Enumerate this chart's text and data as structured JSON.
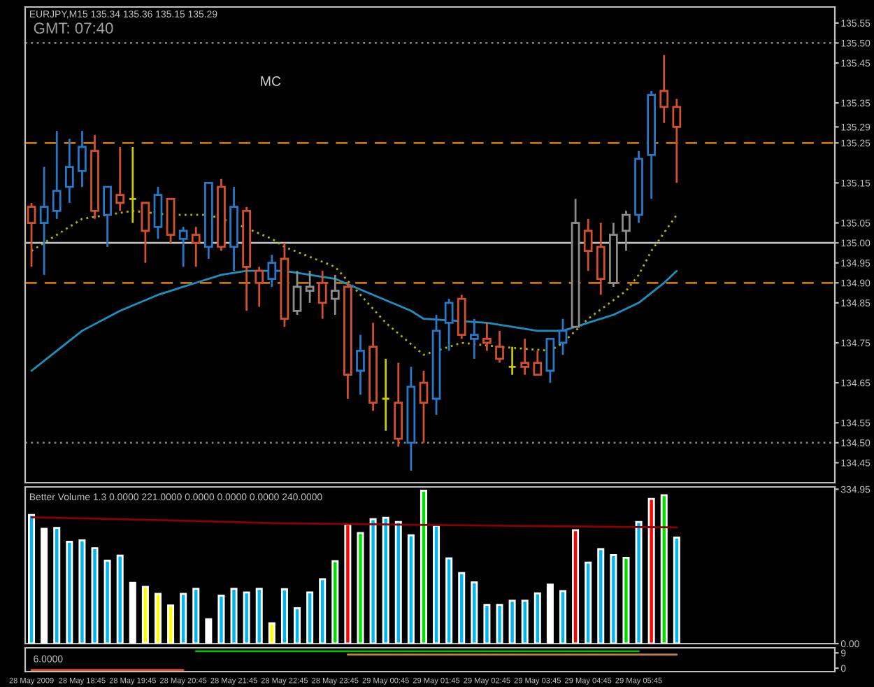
{
  "chart_data": [
    {
      "type": "candlestick",
      "title": "EURJPY,M15 135.34 135.36 135.15 135.29",
      "annotations": [
        "GMT: 07:40",
        "MC"
      ],
      "ohlc": [
        [
          135.09,
          135.1,
          134.94,
          135.05
        ],
        [
          135.05,
          135.19,
          134.92,
          135.09
        ],
        [
          135.08,
          135.28,
          135.06,
          135.13
        ],
        [
          135.14,
          135.26,
          135.1,
          135.19
        ],
        [
          135.18,
          135.28,
          135.14,
          135.24
        ],
        [
          135.23,
          135.27,
          135.06,
          135.08
        ],
        [
          135.07,
          135.14,
          134.99,
          135.14
        ],
        [
          135.12,
          135.24,
          135.08,
          135.1
        ],
        [
          135.11,
          135.24,
          135.05,
          135.11
        ],
        [
          135.1,
          135.1,
          134.95,
          135.03
        ],
        [
          135.04,
          135.14,
          135.01,
          135.12
        ],
        [
          135.11,
          135.11,
          135.0,
          135.02
        ],
        [
          135.01,
          135.04,
          134.94,
          135.03
        ],
        [
          135.02,
          135.04,
          134.94,
          135.0
        ],
        [
          134.99,
          135.15,
          134.96,
          135.15
        ],
        [
          135.14,
          135.16,
          134.98,
          134.99
        ],
        [
          134.99,
          135.14,
          134.93,
          135.09
        ],
        [
          135.08,
          135.09,
          134.83,
          134.94
        ],
        [
          134.93,
          134.94,
          134.84,
          134.9
        ],
        [
          134.91,
          134.97,
          134.89,
          134.95
        ],
        [
          134.96,
          135.0,
          134.79,
          134.81
        ],
        [
          134.83,
          134.93,
          134.82,
          134.89
        ],
        [
          134.88,
          134.93,
          134.85,
          134.89
        ],
        [
          134.9,
          134.93,
          134.81,
          134.85
        ],
        [
          134.86,
          134.92,
          134.82,
          134.88
        ],
        [
          134.89,
          134.9,
          134.61,
          134.67
        ],
        [
          134.68,
          134.77,
          134.62,
          134.73
        ],
        [
          134.74,
          134.8,
          134.58,
          134.6
        ],
        [
          134.61,
          134.71,
          134.53,
          134.61
        ],
        [
          134.6,
          134.7,
          134.49,
          134.51
        ],
        [
          134.5,
          134.69,
          134.43,
          134.64
        ],
        [
          134.65,
          134.68,
          134.5,
          134.6
        ],
        [
          134.61,
          134.82,
          134.57,
          134.78
        ],
        [
          134.8,
          134.86,
          134.73,
          134.85
        ],
        [
          134.86,
          134.87,
          134.76,
          134.77
        ],
        [
          134.76,
          134.81,
          134.71,
          134.77
        ],
        [
          134.76,
          134.8,
          134.73,
          134.75
        ],
        [
          134.74,
          134.78,
          134.7,
          134.71
        ],
        [
          134.69,
          134.74,
          134.67,
          134.69
        ],
        [
          134.7,
          134.76,
          134.67,
          134.69
        ],
        [
          134.7,
          134.73,
          134.67,
          134.67
        ],
        [
          134.68,
          134.76,
          134.65,
          134.76
        ],
        [
          134.75,
          134.81,
          134.72,
          134.78
        ],
        [
          134.79,
          135.11,
          134.79,
          135.05
        ],
        [
          135.03,
          135.06,
          134.93,
          134.98
        ],
        [
          134.99,
          135.05,
          134.87,
          134.91
        ],
        [
          134.9,
          135.05,
          134.89,
          135.02
        ],
        [
          135.03,
          135.08,
          134.98,
          135.07
        ],
        [
          135.07,
          135.23,
          135.05,
          135.21
        ],
        [
          135.22,
          135.38,
          135.11,
          135.37
        ],
        [
          135.38,
          135.47,
          135.3,
          135.34
        ],
        [
          135.34,
          135.36,
          135.15,
          135.29
        ],
        null,
        null,
        null,
        null,
        null,
        null,
        null,
        null,
        null,
        null,
        null,
        null
      ],
      "colors": [
        "#d2502d",
        "#2878c8",
        "#2878c8",
        "#2878c8",
        "#2878c8",
        "#d2502d",
        "#2878c8",
        "#d2502d",
        "#c8c800",
        "#d2502d",
        "#2878c8",
        "#d2502d",
        "#2878c8",
        "#d2502d",
        "#2878c8",
        "#d2502d",
        "#2878c8",
        "#d2502d",
        "#d2502d",
        "#2878c8",
        "#d2502d",
        "#8c8c8c",
        "#8c8c8c",
        "#d2502d",
        "#8c8c8c",
        "#d2502d",
        "#2878c8",
        "#d2502d",
        "#c8c800",
        "#d2502d",
        "#2878c8",
        "#d2502d",
        "#2878c8",
        "#2878c8",
        "#d2502d",
        "#2878c8",
        "#d2502d",
        "#d2502d",
        "#c8c800",
        "#d2502d",
        "#d2502d",
        "#2878c8",
        "#2878c8",
        "#8c8c8c",
        "#d2502d",
        "#d2502d",
        "#8c8c8c",
        "#8c8c8c",
        "#2878c8",
        "#2878c8",
        "#d2502d",
        "#d2502d",
        null,
        null,
        null,
        null,
        null,
        null,
        null,
        null,
        null,
        null,
        null,
        null
      ],
      "series": [
        {
          "type": "line",
          "color": "#b4b400",
          "line_style": "dotted",
          "values": [
            134.98,
            null,
            null,
            135.04,
            135.06,
            null,
            null,
            null,
            135.08,
            null,
            null,
            135.07,
            null,
            null,
            135.07,
            null,
            135.05,
            null,
            null,
            135.01,
            134.99,
            null,
            null,
            null,
            134.94,
            null,
            134.87,
            null,
            134.8,
            null,
            null,
            134.72,
            null,
            null,
            134.75,
            null,
            null,
            134.74,
            null,
            null,
            null,
            134.73,
            134.75,
            134.78,
            134.81,
            null,
            null,
            134.88,
            134.92,
            134.98,
            null,
            135.07,
            null,
            null,
            null,
            null,
            null,
            null,
            null,
            null,
            null,
            null,
            null,
            null
          ]
        },
        {
          "type": "line",
          "color": "#1e90c0",
          "line_style": "solid",
          "values": [
            134.68,
            null,
            null,
            null,
            134.78,
            null,
            null,
            134.83,
            null,
            null,
            134.87,
            null,
            null,
            134.9,
            null,
            134.92,
            null,
            134.93,
            null,
            null,
            134.93,
            null,
            null,
            null,
            134.91,
            null,
            null,
            134.87,
            null,
            null,
            134.83,
            134.81,
            null,
            null,
            null,
            null,
            134.8,
            null,
            null,
            null,
            134.78,
            null,
            134.78,
            null,
            134.8,
            null,
            134.82,
            null,
            134.85,
            null,
            134.9,
            134.93,
            null,
            null,
            null,
            null,
            null,
            null,
            null,
            null,
            null,
            null,
            null,
            null
          ]
        }
      ],
      "ref_lines": [
        {
          "axis": "y",
          "value": 135.5,
          "color": "#808080",
          "line_style": "dotted"
        },
        {
          "axis": "y",
          "value": 135.25,
          "color": "#c87800",
          "line_style": "dashed"
        },
        {
          "axis": "y",
          "value": 135.0,
          "color": "#c0c0c0",
          "line_style": "solid"
        },
        {
          "axis": "y",
          "value": 134.9,
          "color": "#c87800",
          "line_style": "dashed"
        },
        {
          "axis": "y",
          "value": 134.5,
          "color": "#808080",
          "line_style": "dotted"
        }
      ],
      "ylim": [
        134.4,
        135.59
      ],
      "yticks": [
        135.55,
        {
          "value": 135.5,
          "label": "135.50"
        },
        135.45,
        135.35,
        135.29,
        135.25,
        135.15,
        135.05,
        {
          "value": 135.0,
          "label": "135.00"
        },
        134.95,
        {
          "value": 134.9,
          "label": "134.90"
        },
        134.85,
        134.75,
        134.65,
        134.55,
        {
          "value": 134.5,
          "label": "134.50"
        },
        134.45
      ],
      "tick_labels": "y"
    },
    {
      "type": "bar",
      "title": "Better Volume 1.3 0.0000 221.0000 0.0000 0.0000 0.0000 240.0000",
      "values": [
        279,
        249,
        251,
        221,
        224,
        207,
        180,
        191,
        132,
        123,
        108,
        83,
        108,
        119,
        53,
        104,
        119,
        111,
        119,
        44,
        118,
        77,
        111,
        140,
        179,
        259,
        240,
        270,
        273,
        264,
        235,
        332,
        256,
        185,
        153,
        133,
        84,
        84,
        93,
        93,
        109,
        128,
        114,
        246,
        176,
        205,
        192,
        186,
        264,
        314,
        322,
        230,
        null,
        null,
        null,
        null,
        null,
        null,
        null,
        null,
        null,
        null,
        null,
        null
      ],
      "colors": [
        "#00b4f0",
        "#ffffff",
        "#00b4f0",
        "#00b4f0",
        "#00b4f0",
        "#00b4f0",
        "#00b4f0",
        "#00b4f0",
        "#ffffff",
        "#ffff00",
        "#ffff00",
        "#ffff00",
        "#00b4f0",
        "#00b4f0",
        "#ffffff",
        "#00b4f0",
        "#00b4f0",
        "#00b4f0",
        "#00b4f0",
        "#ffff00",
        "#00b4f0",
        "#00b4f0",
        "#00b4f0",
        "#00b4f0",
        "#00e000",
        "#ff0000",
        "#00e000",
        "#00b4f0",
        "#00b4f0",
        "#00b4f0",
        "#00b4f0",
        "#00e000",
        "#00b4f0",
        "#00b4f0",
        "#00b4f0",
        "#00b4f0",
        "#00b4f0",
        "#00b4f0",
        "#00b4f0",
        "#00b4f0",
        "#00b4f0",
        "#ffffff",
        "#00b4f0",
        "#ff0000",
        "#00b4f0",
        "#00b4f0",
        "#00b4f0",
        "#00e000",
        "#00b4f0",
        "#ff0000",
        "#00e000",
        "#00b4f0",
        null,
        null,
        null,
        null,
        null,
        null,
        null,
        null,
        null,
        null,
        null,
        null
      ],
      "series": [
        {
          "type": "line",
          "color": "#8b0000",
          "values": [
            274,
            null,
            null,
            null,
            null,
            null,
            null,
            null,
            null,
            null,
            268,
            null,
            null,
            null,
            null,
            null,
            null,
            null,
            null,
            null,
            261,
            null,
            null,
            null,
            null,
            null,
            null,
            null,
            null,
            null,
            258,
            null,
            null,
            null,
            null,
            null,
            null,
            null,
            null,
            null,
            255,
            null,
            null,
            null,
            null,
            null,
            null,
            null,
            null,
            null,
            null,
            252,
            null,
            null,
            null,
            null,
            null,
            null,
            null,
            null,
            null,
            null,
            null,
            null
          ]
        }
      ],
      "ylim": [
        0,
        340
      ],
      "yticks": [
        334.95,
        {
          "value": 0,
          "label": "0.00"
        }
      ],
      "tick_labels": "y"
    },
    {
      "type": "line",
      "title": "6.0000",
      "categories": [
        "28 May 2009",
        null,
        null,
        null,
        "28 May 18:45",
        null,
        null,
        null,
        "28 May 19:45",
        null,
        null,
        null,
        "28 May 20:45",
        null,
        null,
        null,
        "28 May 21:45",
        null,
        null,
        null,
        "28 May 22:45",
        null,
        null,
        null,
        "28 May 23:45",
        null,
        null,
        null,
        "29 May 00:45",
        null,
        null,
        null,
        "29 May 01:45",
        null,
        null,
        null,
        "29 May 02:45",
        null,
        null,
        null,
        "29 May 03:45",
        null,
        null,
        null,
        "29 May 04:45",
        null,
        null,
        null,
        "29 May 05:45",
        null,
        null,
        null,
        null,
        null,
        null,
        null,
        null,
        null,
        null,
        null,
        null,
        null,
        null,
        null
      ],
      "series": [
        {
          "color": "#00c000",
          "values": [
            null,
            null,
            null,
            null,
            null,
            null,
            null,
            null,
            null,
            null,
            null,
            null,
            null,
            10,
            10,
            10,
            10,
            10,
            10,
            10,
            10,
            10,
            10,
            10,
            10,
            10,
            10,
            10,
            10,
            10,
            10,
            10,
            10,
            10,
            10,
            10,
            10,
            10,
            10,
            10,
            10,
            10,
            10,
            10,
            10,
            10,
            10,
            10,
            10,
            null,
            null,
            null,
            null,
            null,
            null,
            null,
            null,
            null,
            null,
            null,
            null,
            null,
            null,
            null
          ]
        },
        {
          "color": "#c08040",
          "values": [
            null,
            null,
            null,
            null,
            null,
            null,
            null,
            null,
            null,
            null,
            null,
            null,
            null,
            null,
            null,
            null,
            null,
            null,
            null,
            null,
            null,
            null,
            null,
            null,
            null,
            8,
            8,
            8,
            8,
            8,
            8,
            8,
            8,
            8,
            8,
            8,
            8,
            8,
            8,
            8,
            8,
            8,
            8,
            8,
            8,
            8,
            8,
            8,
            8,
            8,
            8,
            8,
            null,
            null,
            null,
            null,
            null,
            null,
            null,
            null,
            null,
            null,
            null,
            null
          ]
        },
        {
          "color": "#e05030",
          "values": [
            -1,
            -1,
            -1,
            -1,
            -1,
            -1,
            -1,
            -1,
            -1,
            -1,
            -1,
            -1,
            -1,
            null,
            null,
            null,
            null,
            null,
            null,
            null,
            null,
            null,
            null,
            null,
            null,
            null,
            null,
            null,
            null,
            null,
            null,
            null,
            null,
            null,
            null,
            null,
            null,
            null,
            null,
            null,
            null,
            null,
            null,
            null,
            null,
            null,
            null,
            null,
            null,
            null,
            null,
            null,
            null,
            null,
            null,
            null,
            null,
            null,
            null,
            null,
            null,
            null,
            null,
            null
          ]
        }
      ],
      "ylim": [
        -2,
        12
      ],
      "yticks": [
        9,
        0
      ]
    }
  ]
}
